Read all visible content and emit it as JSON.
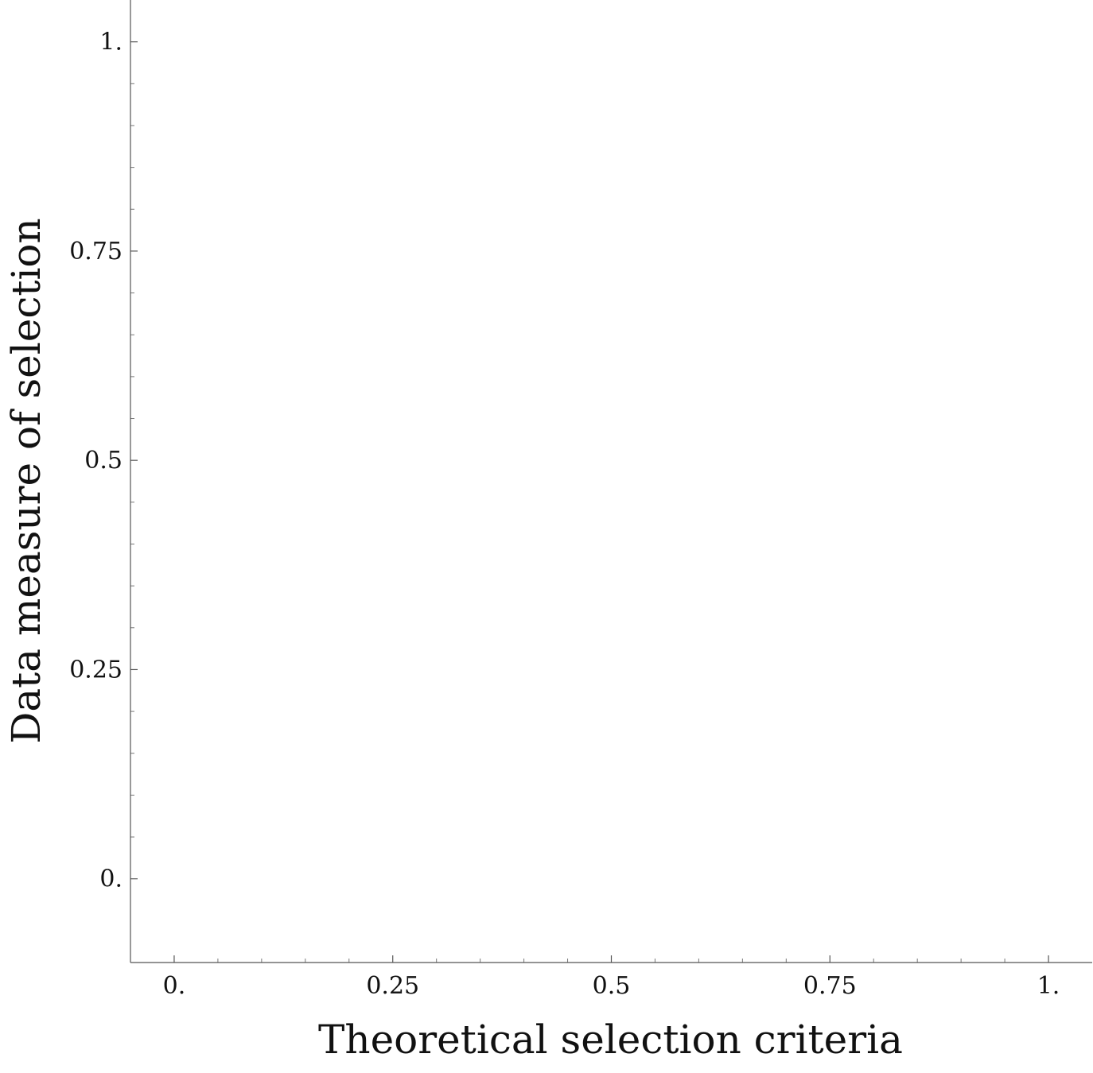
{
  "chart_data": {
    "type": "scatter",
    "xlabel": "Theoretical selection criteria",
    "ylabel": "Data measure of selection",
    "xlim": [
      -0.05,
      1.05
    ],
    "ylim": [
      -0.1,
      1.05
    ],
    "x_ticks": [
      0,
      0.25,
      0.5,
      0.75,
      1
    ],
    "x_tick_labels": [
      "0.",
      "0.25",
      "0.5",
      "0.75",
      "1."
    ],
    "y_ticks": [
      0,
      0.25,
      0.5,
      0.75,
      1
    ],
    "y_tick_labels": [
      "0.",
      "0.25",
      "0.5",
      "0.75",
      "1."
    ],
    "minor_step": 0.05,
    "grid": false,
    "series": []
  }
}
